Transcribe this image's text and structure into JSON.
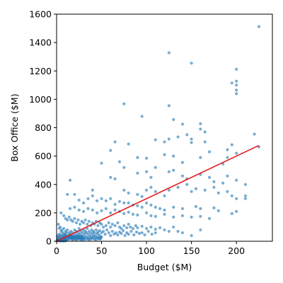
{
  "chart_data": {
    "type": "scatter",
    "title": "",
    "xlabel": "Budget ($M)",
    "ylabel": "Box Office ($M)",
    "xlim": [
      0,
      240
    ],
    "ylim": [
      0,
      1600
    ],
    "xticks": [
      0,
      50,
      100,
      150,
      200
    ],
    "yticks": [
      0,
      200,
      400,
      600,
      800,
      1000,
      1200,
      1400,
      1600
    ],
    "grid": false,
    "legend": "none",
    "point_color": "#1f77b4",
    "line_color": "#e31a1c",
    "fit_line": {
      "x": [
        0,
        225
      ],
      "y": [
        0,
        675
      ]
    },
    "points": [
      [
        225,
        1512
      ],
      [
        125,
        1328
      ],
      [
        150,
        1255
      ],
      [
        200,
        1212
      ],
      [
        200,
        1065
      ],
      [
        200,
        1040
      ],
      [
        200,
        1128
      ],
      [
        195,
        1115
      ],
      [
        200,
        1100
      ],
      [
        75,
        968
      ],
      [
        95,
        880
      ],
      [
        125,
        955
      ],
      [
        130,
        857
      ],
      [
        140,
        825
      ],
      [
        160,
        828
      ],
      [
        145,
        750
      ],
      [
        150,
        720
      ],
      [
        160,
        790
      ],
      [
        165,
        770
      ],
      [
        110,
        715
      ],
      [
        120,
        700
      ],
      [
        125,
        720
      ],
      [
        135,
        735
      ],
      [
        150,
        695
      ],
      [
        165,
        700
      ],
      [
        170,
        630
      ],
      [
        190,
        645
      ],
      [
        195,
        680
      ],
      [
        200,
        620
      ],
      [
        220,
        755
      ],
      [
        225,
        665
      ],
      [
        65,
        700
      ],
      [
        80,
        685
      ],
      [
        60,
        640
      ],
      [
        90,
        590
      ],
      [
        100,
        585
      ],
      [
        120,
        610
      ],
      [
        130,
        600
      ],
      [
        140,
        555
      ],
      [
        160,
        590
      ],
      [
        185,
        545
      ],
      [
        190,
        590
      ],
      [
        50,
        550
      ],
      [
        70,
        560
      ],
      [
        75,
        520
      ],
      [
        90,
        480
      ],
      [
        100,
        490
      ],
      [
        105,
        450
      ],
      [
        110,
        520
      ],
      [
        125,
        490
      ],
      [
        130,
        500
      ],
      [
        140,
        460
      ],
      [
        145,
        440
      ],
      [
        160,
        470
      ],
      [
        170,
        450
      ],
      [
        175,
        420
      ],
      [
        185,
        410
      ],
      [
        190,
        460
      ],
      [
        200,
        430
      ],
      [
        210,
        400
      ],
      [
        40,
        360
      ],
      [
        60,
        450
      ],
      [
        65,
        440
      ],
      [
        75,
        360
      ],
      [
        80,
        340
      ],
      [
        90,
        330
      ],
      [
        95,
        315
      ],
      [
        100,
        360
      ],
      [
        105,
        380
      ],
      [
        110,
        350
      ],
      [
        120,
        320
      ],
      [
        125,
        360
      ],
      [
        135,
        380
      ],
      [
        145,
        400
      ],
      [
        150,
        350
      ],
      [
        155,
        370
      ],
      [
        165,
        360
      ],
      [
        175,
        380
      ],
      [
        180,
        340
      ],
      [
        190,
        350
      ],
      [
        195,
        320
      ],
      [
        200,
        300
      ],
      [
        210,
        320
      ],
      [
        210,
        300
      ],
      [
        15,
        430
      ],
      [
        12,
        330
      ],
      [
        20,
        330
      ],
      [
        25,
        290
      ],
      [
        30,
        270
      ],
      [
        35,
        300
      ],
      [
        40,
        320
      ],
      [
        45,
        285
      ],
      [
        50,
        300
      ],
      [
        55,
        285
      ],
      [
        60,
        300
      ],
      [
        65,
        260
      ],
      [
        70,
        280
      ],
      [
        75,
        270
      ],
      [
        80,
        270
      ],
      [
        85,
        255
      ],
      [
        90,
        250
      ],
      [
        95,
        240
      ],
      [
        100,
        270
      ],
      [
        105,
        255
      ],
      [
        110,
        240
      ],
      [
        115,
        230
      ],
      [
        120,
        220
      ],
      [
        130,
        240
      ],
      [
        140,
        230
      ],
      [
        155,
        245
      ],
      [
        160,
        230
      ],
      [
        175,
        235
      ],
      [
        180,
        215
      ],
      [
        195,
        195
      ],
      [
        200,
        210
      ],
      [
        15,
        230
      ],
      [
        20,
        240
      ],
      [
        25,
        220
      ],
      [
        30,
        210
      ],
      [
        35,
        230
      ],
      [
        40,
        220
      ],
      [
        45,
        200
      ],
      [
        50,
        215
      ],
      [
        55,
        230
      ],
      [
        60,
        200
      ],
      [
        65,
        220
      ],
      [
        70,
        210
      ],
      [
        75,
        195
      ],
      [
        80,
        205
      ],
      [
        85,
        190
      ],
      [
        90,
        185
      ],
      [
        100,
        200
      ],
      [
        105,
        180
      ],
      [
        110,
        175
      ],
      [
        120,
        190
      ],
      [
        130,
        170
      ],
      [
        140,
        180
      ],
      [
        150,
        170
      ],
      [
        160,
        175
      ],
      [
        170,
        160
      ],
      [
        5,
        200
      ],
      [
        8,
        180
      ],
      [
        10,
        160
      ],
      [
        12,
        150
      ],
      [
        14,
        170
      ],
      [
        16,
        150
      ],
      [
        18,
        140
      ],
      [
        20,
        160
      ],
      [
        22,
        130
      ],
      [
        24,
        150
      ],
      [
        26,
        120
      ],
      [
        28,
        140
      ],
      [
        30,
        130
      ],
      [
        32,
        150
      ],
      [
        34,
        120
      ],
      [
        36,
        140
      ],
      [
        38,
        110
      ],
      [
        40,
        130
      ],
      [
        42,
        120
      ],
      [
        44,
        140
      ],
      [
        46,
        110
      ],
      [
        48,
        130
      ],
      [
        50,
        120
      ],
      [
        52,
        100
      ],
      [
        55,
        110
      ],
      [
        58,
        130
      ],
      [
        60,
        100
      ],
      [
        62,
        120
      ],
      [
        65,
        110
      ],
      [
        68,
        130
      ],
      [
        70,
        100
      ],
      [
        72,
        90
      ],
      [
        75,
        110
      ],
      [
        78,
        95
      ],
      [
        80,
        120
      ],
      [
        82,
        100
      ],
      [
        85,
        90
      ],
      [
        88,
        110
      ],
      [
        90,
        95
      ],
      [
        95,
        105
      ],
      [
        100,
        90
      ],
      [
        105,
        100
      ],
      [
        110,
        85
      ],
      [
        115,
        95
      ],
      [
        120,
        80
      ],
      [
        125,
        70
      ],
      [
        130,
        100
      ],
      [
        135,
        70
      ],
      [
        140,
        60
      ],
      [
        150,
        40
      ],
      [
        160,
        80
      ],
      [
        2,
        120
      ],
      [
        3,
        90
      ],
      [
        4,
        100
      ],
      [
        5,
        70
      ],
      [
        6,
        80
      ],
      [
        7,
        60
      ],
      [
        8,
        90
      ],
      [
        9,
        50
      ],
      [
        10,
        70
      ],
      [
        11,
        60
      ],
      [
        12,
        80
      ],
      [
        13,
        40
      ],
      [
        14,
        60
      ],
      [
        15,
        50
      ],
      [
        16,
        70
      ],
      [
        17,
        40
      ],
      [
        18,
        60
      ],
      [
        19,
        30
      ],
      [
        20,
        80
      ],
      [
        21,
        50
      ],
      [
        22,
        70
      ],
      [
        23,
        40
      ],
      [
        24,
        60
      ],
      [
        25,
        90
      ],
      [
        26,
        50
      ],
      [
        27,
        70
      ],
      [
        28,
        40
      ],
      [
        29,
        60
      ],
      [
        30,
        80
      ],
      [
        31,
        50
      ],
      [
        32,
        70
      ],
      [
        33,
        60
      ],
      [
        34,
        90
      ],
      [
        35,
        50
      ],
      [
        36,
        70
      ],
      [
        37,
        40
      ],
      [
        38,
        60
      ],
      [
        39,
        80
      ],
      [
        40,
        50
      ],
      [
        41,
        70
      ],
      [
        42,
        60
      ],
      [
        43,
        40
      ],
      [
        44,
        80
      ],
      [
        45,
        55
      ],
      [
        46,
        65
      ],
      [
        47,
        45
      ],
      [
        48,
        75
      ],
      [
        49,
        35
      ],
      [
        50,
        60
      ],
      [
        52,
        70
      ],
      [
        54,
        50
      ],
      [
        56,
        80
      ],
      [
        58,
        60
      ],
      [
        60,
        40
      ],
      [
        62,
        70
      ],
      [
        64,
        50
      ],
      [
        66,
        60
      ],
      [
        68,
        45
      ],
      [
        70,
        65
      ],
      [
        72,
        55
      ],
      [
        74,
        75
      ],
      [
        76,
        40
      ],
      [
        78,
        60
      ],
      [
        80,
        50
      ],
      [
        83,
        70
      ],
      [
        86,
        45
      ],
      [
        89,
        65
      ],
      [
        92,
        55
      ],
      [
        95,
        60
      ],
      [
        98,
        45
      ],
      [
        102,
        70
      ],
      [
        106,
        50
      ],
      [
        110,
        60
      ],
      [
        1,
        40
      ],
      [
        1,
        20
      ],
      [
        2,
        30
      ],
      [
        2,
        10
      ],
      [
        3,
        50
      ],
      [
        3,
        25
      ],
      [
        4,
        35
      ],
      [
        4,
        15
      ],
      [
        5,
        45
      ],
      [
        5,
        20
      ],
      [
        6,
        30
      ],
      [
        6,
        10
      ],
      [
        7,
        40
      ],
      [
        7,
        20
      ],
      [
        8,
        30
      ],
      [
        8,
        15
      ],
      [
        9,
        25
      ],
      [
        9,
        45
      ],
      [
        10,
        20
      ],
      [
        10,
        35
      ],
      [
        11,
        15
      ],
      [
        11,
        40
      ],
      [
        12,
        25
      ],
      [
        12,
        10
      ],
      [
        13,
        30
      ],
      [
        13,
        20
      ],
      [
        14,
        35
      ],
      [
        14,
        15
      ],
      [
        15,
        25
      ],
      [
        15,
        40
      ],
      [
        16,
        20
      ],
      [
        16,
        30
      ],
      [
        17,
        15
      ],
      [
        17,
        35
      ],
      [
        18,
        25
      ],
      [
        18,
        10
      ],
      [
        19,
        20
      ],
      [
        19,
        40
      ],
      [
        20,
        30
      ],
      [
        20,
        15
      ],
      [
        21,
        25
      ],
      [
        21,
        35
      ],
      [
        22,
        20
      ],
      [
        22,
        10
      ],
      [
        23,
        30
      ],
      [
        23,
        15
      ],
      [
        24,
        25
      ],
      [
        24,
        40
      ],
      [
        25,
        20
      ],
      [
        25,
        35
      ],
      [
        26,
        15
      ],
      [
        26,
        30
      ],
      [
        27,
        25
      ],
      [
        27,
        10
      ],
      [
        28,
        20
      ],
      [
        28,
        35
      ],
      [
        29,
        30
      ],
      [
        29,
        15
      ],
      [
        30,
        25
      ],
      [
        30,
        10
      ],
      [
        31,
        20
      ],
      [
        32,
        35
      ],
      [
        33,
        15
      ],
      [
        34,
        30
      ],
      [
        35,
        20
      ],
      [
        36,
        10
      ],
      [
        37,
        25
      ],
      [
        38,
        15
      ],
      [
        39,
        30
      ],
      [
        40,
        20
      ],
      [
        41,
        35
      ],
      [
        42,
        15
      ],
      [
        43,
        25
      ],
      [
        44,
        10
      ],
      [
        45,
        30
      ],
      [
        46,
        20
      ],
      [
        47,
        25
      ],
      [
        48,
        15
      ],
      [
        49,
        20
      ],
      [
        50,
        30
      ],
      [
        0.5,
        5
      ],
      [
        1,
        8
      ],
      [
        1.5,
        3
      ],
      [
        2,
        6
      ],
      [
        2.5,
        12
      ],
      [
        3,
        4
      ],
      [
        3.5,
        9
      ],
      [
        4,
        2
      ],
      [
        4.5,
        7
      ],
      [
        5,
        11
      ],
      [
        5.5,
        3
      ],
      [
        6,
        8
      ],
      [
        6.5,
        5
      ],
      [
        7,
        10
      ],
      [
        7.5,
        2
      ],
      [
        8,
        6
      ],
      [
        8.5,
        9
      ],
      [
        9,
        4
      ],
      [
        9.5,
        7
      ],
      [
        10,
        3
      ]
    ]
  }
}
